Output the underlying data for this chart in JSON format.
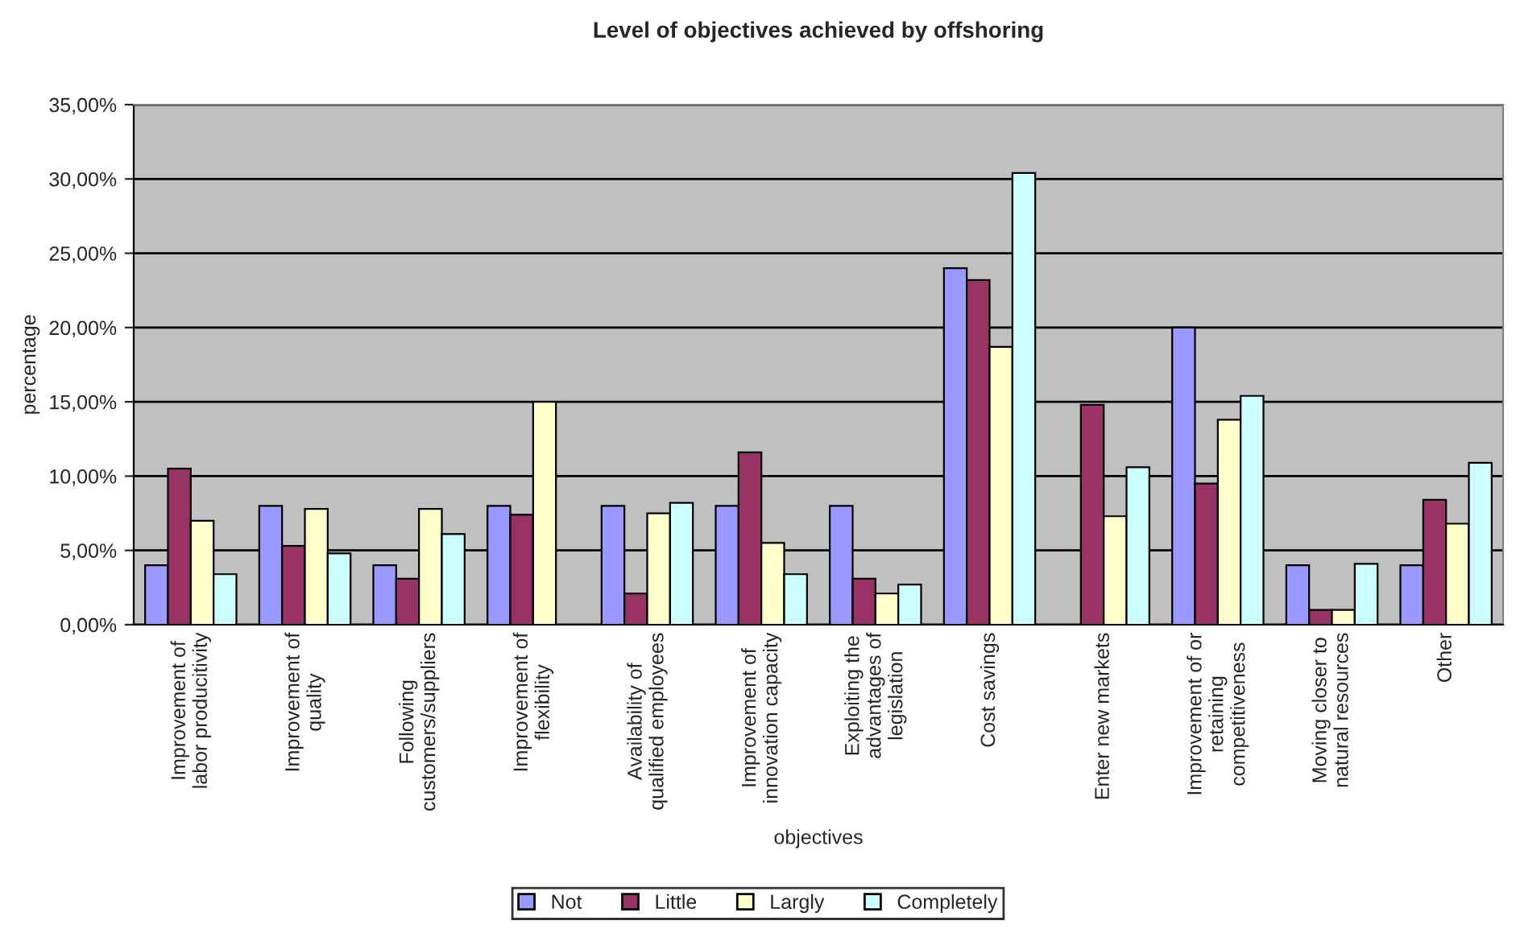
{
  "chart_data": {
    "type": "bar",
    "title": "Level of objectives achieved by offshoring",
    "xlabel": "objectives",
    "ylabel": "percentage",
    "categories": [
      "Improvement of\nlabor producitivity",
      "Improvement of\nquality",
      "Following\ncustomers/suppliers",
      "Improvement of\nflexibility",
      "Availability of\nqualified employees",
      "Improvement of\ninnovation capacity",
      "Exploiting the\nadvantages of\nlegislation",
      "Cost savings",
      "Enter new markets",
      "Improvement of or\nretaining\ncompetitiveness",
      "Moving closer to\nnatural resources",
      "Other"
    ],
    "series": [
      {
        "name": "Not",
        "color": "#9999ff",
        "values": [
          4,
          8,
          4,
          8,
          8,
          8,
          8,
          24,
          null,
          20,
          4,
          4
        ]
      },
      {
        "name": "Little",
        "color": "#993366",
        "values": [
          10.5,
          5.3,
          3.1,
          7.4,
          2.1,
          11.6,
          3.1,
          23.2,
          14.8,
          9.5,
          1.0,
          8.4
        ]
      },
      {
        "name": "Largly",
        "color": "#ffffcc",
        "values": [
          7.0,
          7.8,
          7.8,
          15.0,
          7.5,
          5.5,
          2.1,
          18.7,
          7.3,
          13.8,
          1.0,
          6.8
        ]
      },
      {
        "name": "Completely",
        "color": "#ccffff",
        "values": [
          3.4,
          4.8,
          6.1,
          null,
          8.2,
          3.4,
          2.7,
          30.4,
          10.6,
          15.4,
          4.1,
          10.9
        ]
      }
    ],
    "ylim": [
      0,
      35
    ],
    "yticks": [
      {
        "value": 0,
        "label": "0,00%"
      },
      {
        "value": 5,
        "label": "5,00%"
      },
      {
        "value": 10,
        "label": "10,00%"
      },
      {
        "value": 15,
        "label": "15,00%"
      },
      {
        "value": 20,
        "label": "20,00%"
      },
      {
        "value": 25,
        "label": "25,00%"
      },
      {
        "value": 30,
        "label": "30,00%"
      },
      {
        "value": 35,
        "label": "35,00%"
      }
    ],
    "grid": "y",
    "legend": "bottom"
  }
}
